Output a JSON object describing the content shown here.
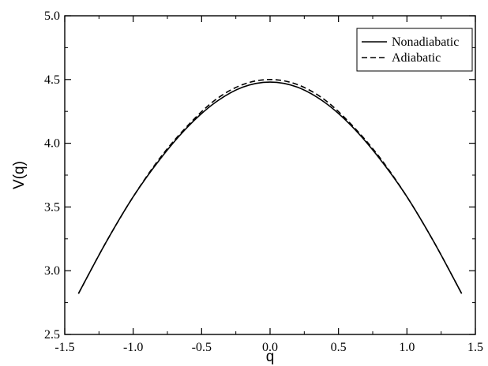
{
  "chart_data": {
    "type": "line",
    "title": "",
    "xlabel": "q",
    "ylabel": "V(q)",
    "xlim": [
      -1.5,
      1.5
    ],
    "ylim": [
      2.5,
      5.0
    ],
    "x_ticks": [
      "-1.5",
      "-1.0",
      "-0.5",
      "0.0",
      "0.5",
      "1.0",
      "1.5"
    ],
    "y_ticks": [
      "2.5",
      "3.0",
      "3.5",
      "4.0",
      "4.5",
      "5.0"
    ],
    "grid": false,
    "legend_position": "top-right",
    "series": [
      {
        "name": "Nonadiabatic",
        "style": "solid",
        "color": "#000000",
        "x": [
          -1.4,
          -1.2,
          -1.0,
          -0.8,
          -0.6,
          -0.4,
          -0.2,
          0.0,
          0.2,
          0.4,
          0.6,
          0.8,
          1.0,
          1.2,
          1.4
        ],
        "y": [
          2.82,
          3.22,
          3.58,
          3.88,
          4.13,
          4.32,
          4.44,
          4.48,
          4.44,
          4.32,
          4.13,
          3.88,
          3.58,
          3.22,
          2.82
        ]
      },
      {
        "name": "Adiabatic",
        "style": "dashed",
        "color": "#000000",
        "x": [
          -1.4,
          -1.2,
          -1.0,
          -0.8,
          -0.6,
          -0.4,
          -0.2,
          0.0,
          0.2,
          0.4,
          0.6,
          0.8,
          1.0,
          1.2,
          1.4
        ],
        "y": [
          2.82,
          3.22,
          3.58,
          3.89,
          4.14,
          4.34,
          4.46,
          4.5,
          4.46,
          4.34,
          4.14,
          3.89,
          3.58,
          3.22,
          2.82
        ]
      }
    ]
  }
}
